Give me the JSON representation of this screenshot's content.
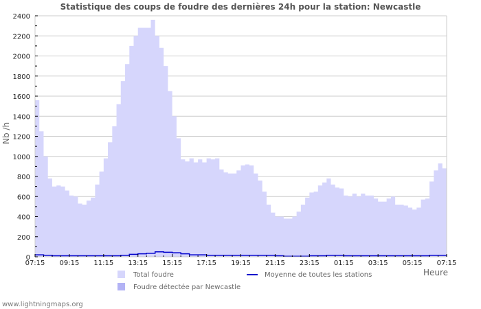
{
  "chart_data": {
    "type": "area",
    "title": "Statistique des coups de foudre des dernières 24h pour la station: Newcastle",
    "xlabel": "Heure",
    "ylabel": "Nb /h",
    "ylim": [
      0,
      2400
    ],
    "yticks": [
      0,
      200,
      400,
      600,
      800,
      1000,
      1200,
      1400,
      1600,
      1800,
      2000,
      2200,
      2400
    ],
    "xticks": [
      "07:15",
      "09:15",
      "11:15",
      "13:15",
      "15:15",
      "17:15",
      "19:15",
      "21:15",
      "23:15",
      "01:15",
      "03:15",
      "05:15",
      "07:15"
    ],
    "grid": true,
    "legend_position": "bottom",
    "series": [
      {
        "name": "Total foudre",
        "style": "area",
        "color": "#d6d6fc",
        "x_hours": [
          0,
          0.25,
          0.5,
          0.75,
          1,
          1.25,
          1.5,
          1.75,
          2,
          2.25,
          2.5,
          2.75,
          3,
          3.25,
          3.5,
          3.75,
          4,
          4.25,
          4.5,
          4.75,
          5,
          5.25,
          5.5,
          5.75,
          6,
          6.25,
          6.5,
          6.75,
          7,
          7.25,
          7.5,
          7.75,
          8,
          8.25,
          8.5,
          8.75,
          9,
          9.25,
          9.5,
          9.75,
          10,
          10.25,
          10.5,
          10.75,
          11,
          11.25,
          11.5,
          11.75,
          12,
          12.25,
          12.5,
          12.75,
          13,
          13.25,
          13.5,
          13.75,
          14,
          14.25,
          14.5,
          14.75,
          15,
          15.25,
          15.5,
          15.75,
          16,
          16.25,
          16.5,
          16.75,
          17,
          17.25,
          17.5,
          17.75,
          18,
          18.25,
          18.5,
          18.75,
          19,
          19.25,
          19.5,
          19.75,
          20,
          20.25,
          20.5,
          20.75,
          21,
          21.25,
          21.5,
          21.75,
          22,
          22.25,
          22.5,
          22.75,
          23,
          23.25,
          23.5,
          23.75,
          24
        ],
        "values": [
          1560,
          1250,
          1000,
          780,
          700,
          710,
          700,
          660,
          610,
          600,
          530,
          520,
          560,
          590,
          720,
          850,
          980,
          1140,
          1300,
          1520,
          1750,
          1920,
          2100,
          2200,
          2280,
          2280,
          2280,
          2360,
          2200,
          2080,
          1900,
          1650,
          1400,
          1180,
          970,
          950,
          980,
          940,
          970,
          940,
          980,
          970,
          980,
          870,
          840,
          830,
          830,
          860,
          910,
          920,
          910,
          830,
          760,
          650,
          520,
          440,
          400,
          400,
          380,
          380,
          400,
          450,
          520,
          590,
          640,
          650,
          710,
          740,
          780,
          720,
          690,
          680,
          610,
          600,
          630,
          600,
          630,
          610,
          610,
          580,
          550,
          550,
          580,
          600,
          520,
          520,
          510,
          490,
          470,
          490,
          570,
          580,
          750,
          860,
          930,
          880,
          880
        ]
      },
      {
        "name": "Foudre détectée par Newcastle",
        "style": "area",
        "color": "#b3b3f5",
        "values": []
      },
      {
        "name": "Moyenne de toutes les stations",
        "style": "line",
        "color": "#0000cc",
        "x_hours": [
          0,
          0.5,
          1,
          2,
          3,
          4,
          5,
          5.5,
          6,
          6.5,
          7,
          7.5,
          8,
          8.5,
          9,
          10,
          11,
          12,
          13,
          14,
          14.5,
          15,
          15.5,
          16,
          17,
          18,
          19,
          20,
          21,
          22,
          23,
          24
        ],
        "values": [
          20,
          15,
          10,
          10,
          10,
          10,
          15,
          25,
          30,
          35,
          50,
          45,
          40,
          30,
          20,
          15,
          15,
          15,
          15,
          10,
          5,
          5,
          5,
          10,
          15,
          10,
          10,
          10,
          10,
          10,
          15,
          15
        ]
      }
    ]
  },
  "page": {
    "title": "Statistique des coups de foudre des dernières 24h pour la station: Newcastle",
    "ylabel": "Nb /h",
    "xunit": "Heure",
    "legend": {
      "total": "Total foudre",
      "detected": "Foudre détectée par Newcastle",
      "average": "Moyenne de toutes les stations"
    },
    "footer": "www.lightningmaps.org",
    "colors": {
      "total_fill": "#d6d6fc",
      "detected_fill": "#b3b3f5",
      "average_line": "#0000cc",
      "grid": "#cccccc"
    }
  }
}
